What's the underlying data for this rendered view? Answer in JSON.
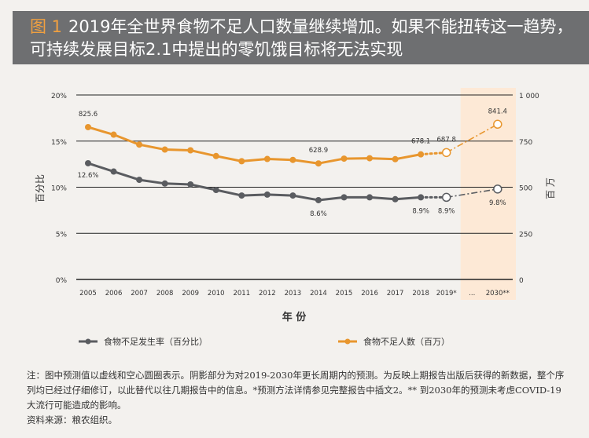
{
  "header": {
    "figure_label": "图 1",
    "title": "2019年全世界食物不足人口数量继续增加。如果不能扭转这一趋势，可持续发展目标2.1中提出的零饥饿目标将无法实现"
  },
  "chart_data": {
    "type": "line",
    "categories": [
      "2005",
      "2006",
      "2007",
      "2008",
      "2009",
      "2010",
      "2011",
      "2012",
      "2013",
      "2014",
      "2015",
      "2016",
      "2017",
      "2018",
      "2019*",
      "...",
      "2030**"
    ],
    "xlabel": "年 份",
    "ylabel_left": "百分比",
    "ylabel_right": "百 万",
    "left_ticks": [
      "0%",
      "5%",
      "10%",
      "15%",
      "20%"
    ],
    "left_range": [
      0,
      20
    ],
    "right_ticks": [
      "0",
      "250",
      "500",
      "750",
      "1 000"
    ],
    "right_range": [
      0,
      1000
    ],
    "shaded_projection": [
      "2019*",
      "2030**"
    ],
    "series": [
      {
        "name": "食物不足发生率（百分比）",
        "axis": "left",
        "color": "#5a5c60",
        "values": [
          12.6,
          11.7,
          10.8,
          10.4,
          10.3,
          9.7,
          9.1,
          9.2,
          9.1,
          8.6,
          8.9,
          8.9,
          8.7,
          8.9,
          8.9,
          null,
          9.8
        ],
        "projected_from": "2018",
        "labels": {
          "2005": "12.6%",
          "2014": "8.6%",
          "2018": "8.9%",
          "2019*": "8.9%",
          "2030**": "9.8%"
        }
      },
      {
        "name": "食物不足人数（百万）",
        "axis": "right",
        "color": "#e8962e",
        "values": [
          825.6,
          785,
          731,
          704,
          700,
          669,
          641,
          653,
          648,
          628.9,
          655,
          657,
          652,
          678.1,
          687.8,
          null,
          841.4
        ],
        "projected_from": "2018",
        "labels": {
          "2005": "825.6",
          "2014": "628.9",
          "2018": "678.1",
          "2019*": "687.8",
          "2030**": "841.4"
        }
      }
    ]
  },
  "notes": {
    "note": "注：图中预测值以虚线和空心圆圈表示。阴影部分为对2019-2030年更长周期内的预测。为反映上期报告出版后获得的新数据，整个序列均已经过仔细修订，以此替代以往几期报告中的信息。*预测方法详情参见完整报告中插文2。** 到2030年的预测未考虑COVID-19大流行可能造成的影响。",
    "source": "资料来源：粮农组织。"
  }
}
